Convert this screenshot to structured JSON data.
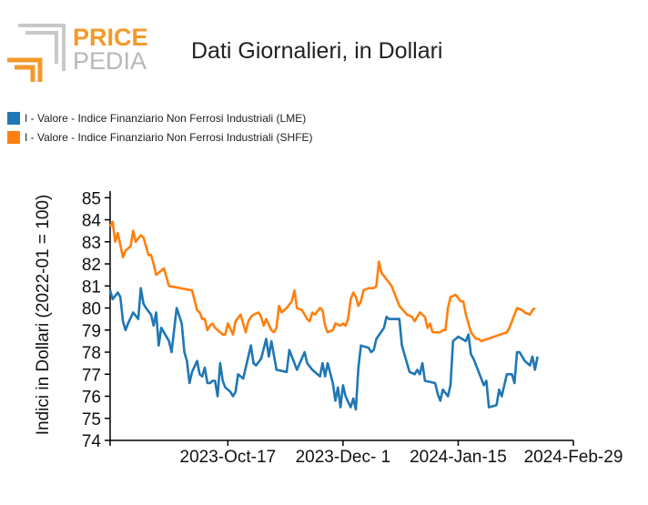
{
  "logo": {
    "word1": "PRICE",
    "word2": "PEDIA"
  },
  "colors": {
    "lme": "#1f77b4",
    "shfe": "#ff7f0e",
    "logo_orange": "#f39a2b",
    "logo_gray": "#c8c8c8"
  },
  "chart_data": {
    "type": "line",
    "title": "Dati Giornalieri, in Dollari",
    "ylabel": "Indici in Dollari (2022-01 = 100)",
    "xlabel": "",
    "ylim": [
      74,
      85.3
    ],
    "yticks": [
      74,
      75,
      76,
      77,
      78,
      79,
      80,
      81,
      82,
      83,
      84,
      85
    ],
    "xlim": [
      "2023-09-01",
      "2024-02-29"
    ],
    "xticks": [
      {
        "date": "2023-10-17",
        "label": "2023-Oct-17"
      },
      {
        "date": "2023-12-01",
        "label": "2023-Dec- 1"
      },
      {
        "date": "2024-01-15",
        "label": "2024-Jan-15"
      },
      {
        "date": "2024-02-29",
        "label": "2024-Feb-29"
      }
    ],
    "legend_position": "top-left",
    "grid": false,
    "series": [
      {
        "name": "I - Valore - Indice Finanziario Non Ferrosi Industriali (LME)",
        "color": "#1f77b4",
        "points": [
          [
            "2023-09-01",
            80.8
          ],
          [
            "2023-09-02",
            80.4
          ],
          [
            "2023-09-04",
            80.7
          ],
          [
            "2023-09-05",
            80.5
          ],
          [
            "2023-09-06",
            79.4
          ],
          [
            "2023-09-07",
            79.0
          ],
          [
            "2023-09-08",
            79.3
          ],
          [
            "2023-09-10",
            79.8
          ],
          [
            "2023-09-12",
            79.5
          ],
          [
            "2023-09-13",
            80.9
          ],
          [
            "2023-09-14",
            80.2
          ],
          [
            "2023-09-15",
            80.0
          ],
          [
            "2023-09-17",
            79.7
          ],
          [
            "2023-09-18",
            79.2
          ],
          [
            "2023-09-19",
            79.8
          ],
          [
            "2023-09-20",
            78.3
          ],
          [
            "2023-09-21",
            79.1
          ],
          [
            "2023-09-22",
            78.9
          ],
          [
            "2023-09-24",
            78.5
          ],
          [
            "2023-09-25",
            78.0
          ],
          [
            "2023-09-27",
            80.0
          ],
          [
            "2023-09-29",
            79.3
          ],
          [
            "2023-09-30",
            78.0
          ],
          [
            "2023-10-01",
            77.6
          ],
          [
            "2023-10-02",
            76.6
          ],
          [
            "2023-10-03",
            77.1
          ],
          [
            "2023-10-05",
            77.6
          ],
          [
            "2023-10-06",
            77.0
          ],
          [
            "2023-10-07",
            76.9
          ],
          [
            "2023-10-08",
            77.3
          ],
          [
            "2023-10-09",
            76.6
          ],
          [
            "2023-10-10",
            76.6
          ],
          [
            "2023-10-11",
            76.7
          ],
          [
            "2023-10-12",
            76.7
          ],
          [
            "2023-10-13",
            76.0
          ],
          [
            "2023-10-14",
            77.5
          ],
          [
            "2023-10-15",
            76.7
          ],
          [
            "2023-10-16",
            76.4
          ],
          [
            "2023-10-18",
            76.2
          ],
          [
            "2023-10-19",
            76.0
          ],
          [
            "2023-10-20",
            76.2
          ],
          [
            "2023-10-21",
            77.0
          ],
          [
            "2023-10-22",
            76.9
          ],
          [
            "2023-10-23",
            76.8
          ],
          [
            "2023-10-26",
            78.3
          ],
          [
            "2023-10-27",
            77.5
          ],
          [
            "2023-10-28",
            77.4
          ],
          [
            "2023-10-30",
            77.7
          ],
          [
            "2023-11-01",
            78.6
          ],
          [
            "2023-11-02",
            77.8
          ],
          [
            "2023-11-03",
            78.5
          ],
          [
            "2023-11-05",
            77.2
          ],
          [
            "2023-11-09",
            77.1
          ],
          [
            "2023-11-10",
            78.1
          ],
          [
            "2023-11-13",
            77.2
          ],
          [
            "2023-11-16",
            78.0
          ],
          [
            "2023-11-17",
            77.5
          ],
          [
            "2023-11-19",
            77.2
          ],
          [
            "2023-11-21",
            77.0
          ],
          [
            "2023-11-22",
            76.9
          ],
          [
            "2023-11-23",
            77.5
          ],
          [
            "2023-11-24",
            76.9
          ],
          [
            "2023-11-25",
            77.5
          ],
          [
            "2023-11-27",
            76.6
          ],
          [
            "2023-11-28",
            75.8
          ],
          [
            "2023-11-29",
            76.4
          ],
          [
            "2023-11-30",
            75.5
          ],
          [
            "2023-12-01",
            76.5
          ],
          [
            "2023-12-02",
            76.0
          ],
          [
            "2023-12-04",
            75.5
          ],
          [
            "2023-12-05",
            75.9
          ],
          [
            "2023-12-06",
            75.4
          ],
          [
            "2023-12-07",
            77.3
          ],
          [
            "2023-12-08",
            78.3
          ],
          [
            "2023-12-11",
            78.2
          ],
          [
            "2023-12-12",
            78.0
          ],
          [
            "2023-12-13",
            78.1
          ],
          [
            "2023-12-14",
            78.6
          ],
          [
            "2023-12-17",
            79.1
          ],
          [
            "2023-12-18",
            79.6
          ],
          [
            "2023-12-19",
            79.5
          ],
          [
            "2023-12-23",
            79.5
          ],
          [
            "2023-12-24",
            78.3
          ],
          [
            "2023-12-27",
            77.1
          ],
          [
            "2023-12-29",
            77.0
          ],
          [
            "2023-12-30",
            77.2
          ],
          [
            "2023-12-31",
            77.0
          ],
          [
            "2024-01-01",
            77.5
          ],
          [
            "2024-01-02",
            76.7
          ],
          [
            "2024-01-06",
            76.6
          ],
          [
            "2024-01-07",
            76.1
          ],
          [
            "2024-01-08",
            75.8
          ],
          [
            "2024-01-09",
            76.3
          ],
          [
            "2024-01-11",
            76.0
          ],
          [
            "2024-01-12",
            76.5
          ],
          [
            "2024-01-13",
            78.5
          ],
          [
            "2024-01-15",
            78.7
          ],
          [
            "2024-01-18",
            78.5
          ],
          [
            "2024-01-19",
            78.8
          ],
          [
            "2024-01-20",
            77.9
          ],
          [
            "2024-01-21",
            77.7
          ],
          [
            "2024-01-23",
            77.1
          ],
          [
            "2024-01-25",
            76.5
          ],
          [
            "2024-01-26",
            76.7
          ],
          [
            "2024-01-27",
            75.5
          ],
          [
            "2024-01-30",
            75.6
          ],
          [
            "2024-01-31",
            76.3
          ],
          [
            "2024-02-01",
            76.0
          ],
          [
            "2024-02-03",
            77.0
          ],
          [
            "2024-02-05",
            77.0
          ],
          [
            "2024-02-06",
            76.6
          ],
          [
            "2024-02-07",
            78.0
          ],
          [
            "2024-02-08",
            78.0
          ],
          [
            "2024-02-10",
            77.6
          ],
          [
            "2024-02-12",
            77.4
          ],
          [
            "2024-02-13",
            77.8
          ],
          [
            "2024-02-14",
            77.2
          ],
          [
            "2024-02-15",
            77.8
          ]
        ]
      },
      {
        "name": "I - Valore - Indice Finanziario Non Ferrosi Industriali (SHFE)",
        "color": "#ff7f0e",
        "points": [
          [
            "2023-09-01",
            83.7
          ],
          [
            "2023-09-02",
            83.9
          ],
          [
            "2023-09-03",
            83.0
          ],
          [
            "2023-09-04",
            83.4
          ],
          [
            "2023-09-06",
            82.3
          ],
          [
            "2023-09-07",
            82.6
          ],
          [
            "2023-09-09",
            82.8
          ],
          [
            "2023-09-10",
            83.5
          ],
          [
            "2023-09-11",
            83.0
          ],
          [
            "2023-09-13",
            83.3
          ],
          [
            "2023-09-14",
            83.2
          ],
          [
            "2023-09-16",
            82.4
          ],
          [
            "2023-09-17",
            82.4
          ],
          [
            "2023-09-18",
            82.0
          ],
          [
            "2023-09-19",
            81.5
          ],
          [
            "2023-09-21",
            81.7
          ],
          [
            "2023-09-22",
            81.8
          ],
          [
            "2023-09-24",
            81.0
          ],
          [
            "2023-10-03",
            80.8
          ],
          [
            "2023-10-05",
            79.9
          ],
          [
            "2023-10-06",
            79.8
          ],
          [
            "2023-10-07",
            79.5
          ],
          [
            "2023-10-08",
            79.5
          ],
          [
            "2023-10-09",
            79.0
          ],
          [
            "2023-10-10",
            79.2
          ],
          [
            "2023-10-11",
            79.3
          ],
          [
            "2023-10-12",
            79.1
          ],
          [
            "2023-10-14",
            78.9
          ],
          [
            "2023-10-15",
            78.8
          ],
          [
            "2023-10-16",
            78.8
          ],
          [
            "2023-10-17",
            79.3
          ],
          [
            "2023-10-19",
            78.8
          ],
          [
            "2023-10-20",
            79.4
          ],
          [
            "2023-10-22",
            79.7
          ],
          [
            "2023-10-24",
            78.9
          ],
          [
            "2023-10-25",
            79.4
          ],
          [
            "2023-10-26",
            79.6
          ],
          [
            "2023-10-27",
            79.7
          ],
          [
            "2023-10-29",
            79.8
          ],
          [
            "2023-10-30",
            79.6
          ],
          [
            "2023-10-31",
            79.2
          ],
          [
            "2023-11-01",
            79.5
          ],
          [
            "2023-11-03",
            79.0
          ],
          [
            "2023-11-04",
            78.9
          ],
          [
            "2023-11-05",
            79.1
          ],
          [
            "2023-11-06",
            80.1
          ],
          [
            "2023-11-07",
            79.8
          ],
          [
            "2023-11-09",
            80.0
          ],
          [
            "2023-11-11",
            80.3
          ],
          [
            "2023-11-12",
            80.8
          ],
          [
            "2023-11-13",
            80.0
          ],
          [
            "2023-11-15",
            79.9
          ],
          [
            "2023-11-17",
            79.5
          ],
          [
            "2023-11-18",
            79.4
          ],
          [
            "2023-11-19",
            79.8
          ],
          [
            "2023-11-20",
            79.7
          ],
          [
            "2023-11-22",
            80.0
          ],
          [
            "2023-11-23",
            79.9
          ],
          [
            "2023-11-24",
            79.2
          ],
          [
            "2023-11-25",
            78.9
          ],
          [
            "2023-11-27",
            79.0
          ],
          [
            "2023-11-28",
            79.3
          ],
          [
            "2023-11-30",
            79.2
          ],
          [
            "2023-12-01",
            79.3
          ],
          [
            "2023-12-02",
            79.2
          ],
          [
            "2023-12-03",
            79.5
          ],
          [
            "2023-12-04",
            80.4
          ],
          [
            "2023-12-05",
            80.7
          ],
          [
            "2023-12-06",
            80.5
          ],
          [
            "2023-12-07",
            80.1
          ],
          [
            "2023-12-08",
            80.3
          ],
          [
            "2023-12-09",
            80.8
          ],
          [
            "2023-12-11",
            80.9
          ],
          [
            "2023-12-13",
            80.9
          ],
          [
            "2023-12-14",
            81.0
          ],
          [
            "2023-12-15",
            82.1
          ],
          [
            "2023-12-16",
            81.6
          ],
          [
            "2023-12-18",
            81.3
          ],
          [
            "2023-12-20",
            81.0
          ],
          [
            "2023-12-21",
            80.7
          ],
          [
            "2023-12-23",
            80.1
          ],
          [
            "2023-12-26",
            79.7
          ],
          [
            "2023-12-28",
            79.6
          ],
          [
            "2023-12-29",
            79.4
          ],
          [
            "2023-12-30",
            79.6
          ],
          [
            "2023-12-31",
            79.8
          ],
          [
            "2024-01-02",
            79.6
          ],
          [
            "2024-01-03",
            79.1
          ],
          [
            "2024-01-04",
            79.3
          ],
          [
            "2024-01-05",
            78.9
          ],
          [
            "2024-01-08",
            78.9
          ],
          [
            "2024-01-09",
            79.0
          ],
          [
            "2024-01-10",
            79.0
          ],
          [
            "2024-01-11",
            80.0
          ],
          [
            "2024-01-12",
            80.5
          ],
          [
            "2024-01-14",
            80.6
          ],
          [
            "2024-01-16",
            80.3
          ],
          [
            "2024-01-17",
            80.3
          ],
          [
            "2024-01-18",
            79.7
          ],
          [
            "2024-01-20",
            78.9
          ],
          [
            "2024-01-22",
            78.6
          ],
          [
            "2024-01-23",
            78.6
          ],
          [
            "2024-01-24",
            78.5
          ],
          [
            "2024-02-03",
            78.9
          ],
          [
            "2024-02-04",
            79.1
          ],
          [
            "2024-02-05",
            79.4
          ],
          [
            "2024-02-07",
            80.0
          ],
          [
            "2024-02-09",
            79.9
          ],
          [
            "2024-02-10",
            79.8
          ],
          [
            "2024-02-12",
            79.7
          ],
          [
            "2024-02-13",
            79.9
          ],
          [
            "2024-02-14",
            80.0
          ]
        ]
      }
    ]
  }
}
